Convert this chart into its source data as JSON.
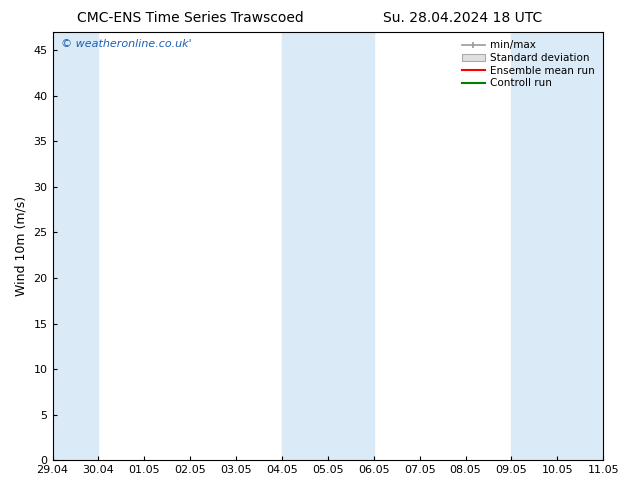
{
  "title_left": "CMC-ENS Time Series Trawscoed",
  "title_right": "Su. 28.04.2024 18 UTC",
  "ylabel": "Wind 10m (m/s)",
  "watermark": "© weatheronline.co.uk'",
  "ylim": [
    0,
    47
  ],
  "yticks": [
    0,
    5,
    10,
    15,
    20,
    25,
    30,
    35,
    40,
    45
  ],
  "xtick_labels": [
    "29.04",
    "30.04",
    "01.05",
    "02.05",
    "03.05",
    "04.05",
    "05.05",
    "06.05",
    "07.05",
    "08.05",
    "09.05",
    "10.05",
    "11.05"
  ],
  "xtick_positions": [
    0,
    1,
    2,
    3,
    4,
    5,
    6,
    7,
    8,
    9,
    10,
    11,
    12
  ],
  "shaded_regions": [
    {
      "x_start": 0,
      "x_end": 1,
      "color": "#daeaf7"
    },
    {
      "x_start": 5,
      "x_end": 7,
      "color": "#daeaf7"
    },
    {
      "x_start": 10,
      "x_end": 12,
      "color": "#daeaf7"
    }
  ],
  "legend_labels": [
    "min/max",
    "Standard deviation",
    "Ensemble mean run",
    "Controll run"
  ],
  "legend_colors_line": [
    "#999999",
    "#cccccc",
    "#ff0000",
    "#008000"
  ],
  "bg_color": "#ffffff",
  "plot_bg_color": "#ffffff",
  "title_fontsize": 10,
  "axis_fontsize": 9,
  "tick_fontsize": 8,
  "watermark_color": "#1a5fb4"
}
